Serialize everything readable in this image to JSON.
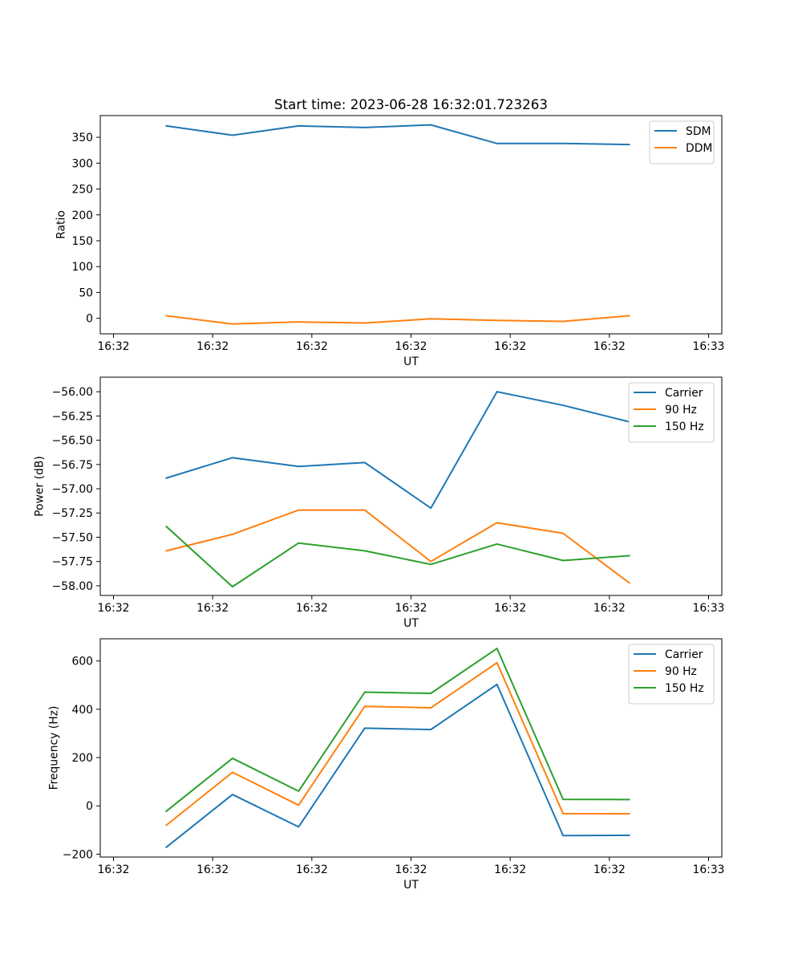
{
  "figure": {
    "title": "Start time: 2023-06-28 16:32:01.723263"
  },
  "chart_data": [
    {
      "type": "line",
      "xlabel": "UT",
      "ylabel": "Ratio",
      "x_tick_labels": [
        "16:32",
        "16:32",
        "16:32",
        "16:32",
        "16:32",
        "16:32",
        "16:33"
      ],
      "xlim": [
        -0.2,
        9.2
      ],
      "ylim": [
        -30,
        392
      ],
      "y_ticks": [
        0,
        50,
        100,
        150,
        200,
        250,
        300,
        350
      ],
      "y_tick_labels": [
        "0",
        "50",
        "100",
        "150",
        "200",
        "250",
        "300",
        "350"
      ],
      "x": [
        0.8,
        1.8,
        2.8,
        3.8,
        4.8,
        5.8,
        6.8,
        7.8
      ],
      "legend": "top-right",
      "series": [
        {
          "name": "SDM",
          "color": "#1f77b4",
          "values": [
            372,
            354,
            372,
            369,
            374,
            338,
            338,
            336
          ]
        },
        {
          "name": "DDM",
          "color": "#ff7f0e",
          "values": [
            5,
            -11,
            -7,
            -9,
            -1,
            -4,
            -6,
            5
          ]
        }
      ]
    },
    {
      "type": "line",
      "xlabel": "UT",
      "ylabel": "Power (dB)",
      "x_tick_labels": [
        "16:32",
        "16:32",
        "16:32",
        "16:32",
        "16:32",
        "16:32",
        "16:33"
      ],
      "xlim": [
        -0.2,
        9.2
      ],
      "ylim": [
        -58.1,
        -55.85
      ],
      "y_ticks": [
        -58.0,
        -57.75,
        -57.5,
        -57.25,
        -57.0,
        -56.75,
        -56.5,
        -56.25,
        -56.0
      ],
      "y_tick_labels": [
        "−58.00",
        "−57.75",
        "−57.50",
        "−57.25",
        "−57.00",
        "−56.75",
        "−56.50",
        "−56.25",
        "−56.00"
      ],
      "x": [
        0.8,
        1.8,
        2.8,
        3.8,
        4.8,
        5.8,
        6.8,
        7.8
      ],
      "legend": "top-right",
      "series": [
        {
          "name": "Carrier",
          "color": "#1f77b4",
          "values": [
            -56.89,
            -56.68,
            -56.77,
            -56.73,
            -57.2,
            -56.0,
            -56.14,
            -56.31
          ]
        },
        {
          "name": "90 Hz",
          "color": "#ff7f0e",
          "values": [
            -57.64,
            -57.47,
            -57.22,
            -57.22,
            -57.75,
            -57.35,
            -57.46,
            -57.97
          ]
        },
        {
          "name": "150 Hz",
          "color": "#2ca02c",
          "values": [
            -57.39,
            -58.01,
            -57.56,
            -57.64,
            -57.78,
            -57.57,
            -57.74,
            -57.69
          ]
        }
      ]
    },
    {
      "type": "line",
      "xlabel": "UT",
      "ylabel": "Frequency (Hz)",
      "x_tick_labels": [
        "16:32",
        "16:32",
        "16:32",
        "16:32",
        "16:32",
        "16:32",
        "16:33"
      ],
      "xlim": [
        -0.2,
        9.2
      ],
      "ylim": [
        -212,
        692
      ],
      "y_ticks": [
        -200,
        0,
        200,
        400,
        600
      ],
      "y_tick_labels": [
        "−200",
        "0",
        "200",
        "400",
        "600"
      ],
      "x": [
        0.8,
        1.8,
        2.8,
        3.8,
        4.8,
        5.8,
        6.8,
        7.8
      ],
      "legend": "top-right",
      "series": [
        {
          "name": "Carrier",
          "color": "#1f77b4",
          "values": [
            -171,
            47,
            -87,
            322,
            316,
            503,
            -123,
            -122
          ]
        },
        {
          "name": "90 Hz",
          "color": "#ff7f0e",
          "values": [
            -80,
            139,
            3,
            412,
            406,
            593,
            -32,
            -33
          ]
        },
        {
          "name": "150 Hz",
          "color": "#2ca02c",
          "values": [
            -22,
            197,
            61,
            471,
            466,
            652,
            27,
            26
          ]
        }
      ]
    }
  ]
}
